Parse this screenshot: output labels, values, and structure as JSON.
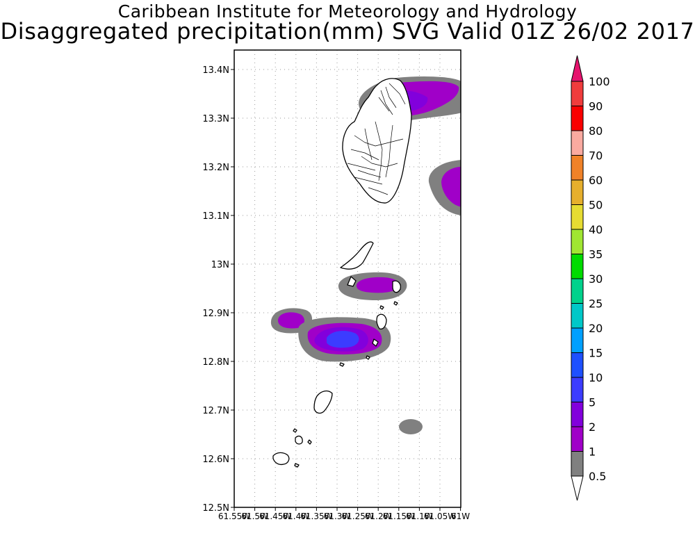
{
  "header": {
    "title_line1": "Caribbean Institute for Meteorology and Hydrology",
    "title_line2": "Disaggregated precipitation(mm) SVG Valid 01Z 26/02 2017"
  },
  "map": {
    "lat_labels": [
      "13.4N",
      "13.3N",
      "13.2N",
      "13.1N",
      "13N",
      "12.9N",
      "12.8N",
      "12.7N",
      "12.6N",
      "12.5N"
    ],
    "lon_labels": [
      "61.55W",
      "61.5W",
      "61.45W",
      "61.4W",
      "61.35W",
      "61.3W",
      "61.25W",
      "61.2W",
      "61.15W",
      "61.1W",
      "61.05W",
      "61W"
    ],
    "lat_range": [
      12.5,
      13.44
    ],
    "lon_range": [
      -61.55,
      -61.0
    ],
    "grid": true
  },
  "legend": {
    "levels": [
      "0.5",
      "1",
      "2",
      "5",
      "10",
      "15",
      "20",
      "25",
      "30",
      "35",
      "40",
      "50",
      "60",
      "70",
      "80",
      "90",
      "100"
    ],
    "colors": [
      "#808080",
      "#a000c8",
      "#8200dc",
      "#3c3cff",
      "#1e50ff",
      "#00a0ff",
      "#00c8c8",
      "#00d28c",
      "#00dc00",
      "#a0e632",
      "#e6dc32",
      "#e6af2d",
      "#f08228",
      "#faaaa0",
      "#fa0000",
      "#f03c3c",
      "#e6146e"
    ]
  }
}
